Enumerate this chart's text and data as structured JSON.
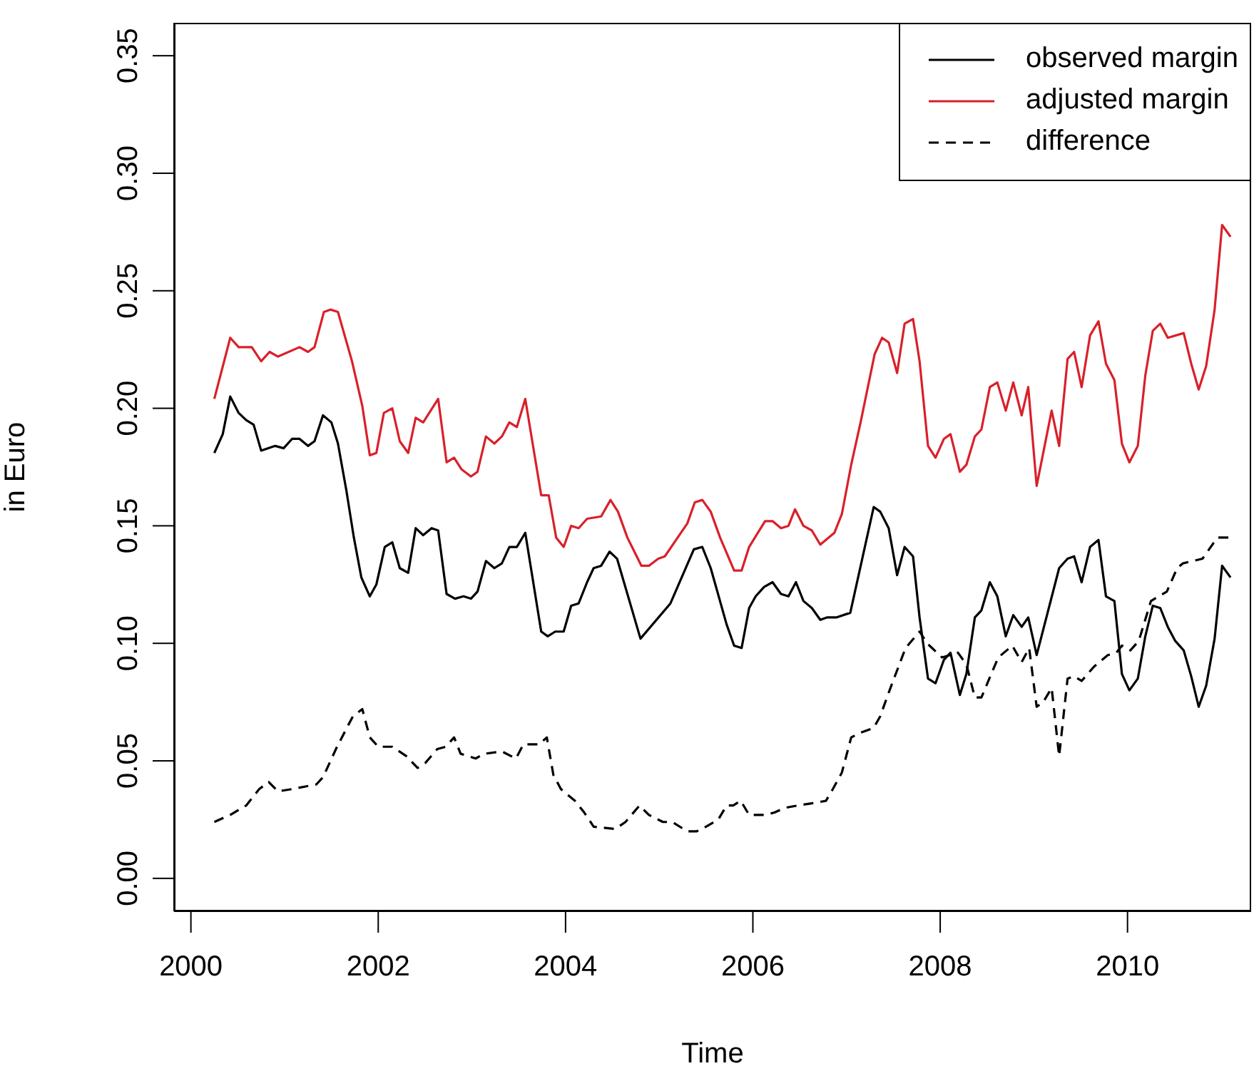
{
  "chart_data": {
    "type": "line",
    "xlabel": "Time",
    "ylabel": "in Euro",
    "xlim": [
      1999.82,
      2011.32
    ],
    "xticks": [
      2000,
      2002,
      2004,
      2006,
      2008,
      2010
    ],
    "ylim": [
      -0.014,
      0.364
    ],
    "yticks": [
      {
        "value": 0,
        "label": "0.00"
      },
      {
        "value": 0.05,
        "label": "0.05"
      },
      {
        "value": 0.1,
        "label": "0.10"
      },
      {
        "value": 0.15,
        "label": "0.15"
      },
      {
        "value": 0.2,
        "label": "0.20"
      },
      {
        "value": 0.25,
        "label": "0.25"
      },
      {
        "value": 0.3,
        "label": "0.30"
      },
      {
        "value": 0.35,
        "label": "0.35"
      }
    ],
    "legend": "top right",
    "marker": "none",
    "series": [
      {
        "name": "observed margin",
        "color": "#000000",
        "line_style": "solid",
        "x": [
          2000.25,
          2000.34,
          2000.42,
          2000.51,
          2000.59,
          2000.67,
          2000.75,
          2000.9,
          2000.99,
          2001.08,
          2001.16,
          2001.25,
          2001.32,
          2001.41,
          2001.5,
          2001.57,
          2001.66,
          2001.74,
          2001.82,
          2001.91,
          2001.98,
          2002.07,
          2002.15,
          2002.23,
          2002.32,
          2002.4,
          2002.48,
          2002.57,
          2002.64,
          2002.73,
          2002.82,
          2002.91,
          2002.99,
          2003.06,
          2003.15,
          2003.24,
          2003.32,
          2003.4,
          2003.48,
          2003.57,
          2003.74,
          2003.81,
          2003.89,
          2003.98,
          2004.06,
          2004.14,
          2004.23,
          2004.3,
          2004.38,
          2004.47,
          2004.55,
          2004.8,
          2005.12,
          2005.37,
          2005.46,
          2005.55,
          2005.72,
          2005.8,
          2005.88,
          2005.96,
          2006.03,
          2006.12,
          2006.21,
          2006.3,
          2006.38,
          2006.46,
          2006.54,
          2006.63,
          2006.72,
          2006.79,
          2006.89,
          2007.04,
          2007.29,
          2007.36,
          2007.45,
          2007.54,
          2007.62,
          2007.71,
          2007.78,
          2007.87,
          2007.95,
          2008.04,
          2008.11,
          2008.21,
          2008.28,
          2008.37,
          2008.44,
          2008.53,
          2008.61,
          2008.7,
          2008.78,
          2008.87,
          2008.94,
          2009.03,
          2009.27,
          2009.36,
          2009.43,
          2009.51,
          2009.6,
          2009.69,
          2009.77,
          2009.86,
          2009.94,
          2010.02,
          2010.11,
          2010.19,
          2010.27,
          2010.35,
          2010.43,
          2010.51,
          2010.6,
          2010.68,
          2010.76,
          2010.84,
          2010.93,
          2011.01,
          2011.1
        ],
        "values": [
          0.181,
          0.189,
          0.205,
          0.198,
          0.195,
          0.193,
          0.182,
          0.184,
          0.183,
          0.187,
          0.187,
          0.184,
          0.186,
          0.197,
          0.194,
          0.185,
          0.165,
          0.145,
          0.128,
          0.12,
          0.125,
          0.141,
          0.143,
          0.132,
          0.13,
          0.149,
          0.146,
          0.149,
          0.148,
          0.121,
          0.119,
          0.12,
          0.119,
          0.122,
          0.135,
          0.132,
          0.134,
          0.141,
          0.141,
          0.147,
          0.105,
          0.103,
          0.105,
          0.105,
          0.116,
          0.117,
          0.126,
          0.132,
          0.133,
          0.139,
          0.136,
          0.102,
          0.117,
          0.14,
          0.141,
          0.132,
          0.108,
          0.099,
          0.098,
          0.115,
          0.12,
          0.124,
          0.126,
          0.121,
          0.12,
          0.126,
          0.118,
          0.115,
          0.11,
          0.111,
          0.111,
          0.113,
          0.158,
          0.156,
          0.149,
          0.129,
          0.141,
          0.137,
          0.111,
          0.085,
          0.083,
          0.093,
          0.096,
          0.078,
          0.087,
          0.111,
          0.114,
          0.126,
          0.12,
          0.103,
          0.112,
          0.107,
          0.111,
          0.095,
          0.132,
          0.136,
          0.137,
          0.126,
          0.141,
          0.144,
          0.12,
          0.118,
          0.087,
          0.08,
          0.085,
          0.103,
          0.116,
          0.115,
          0.107,
          0.101,
          0.097,
          0.086,
          0.073,
          0.082,
          0.102,
          0.133,
          0.128
        ]
      },
      {
        "name": "adjusted margin",
        "color": "#d9202a",
        "line_style": "solid",
        "x": [
          2000.25,
          2000.42,
          2000.51,
          2000.65,
          2000.75,
          2000.84,
          2000.93,
          2001.16,
          2001.25,
          2001.32,
          2001.42,
          2001.49,
          2001.57,
          2001.72,
          2001.83,
          2001.91,
          2001.98,
          2002.06,
          2002.15,
          2002.23,
          2002.32,
          2002.4,
          2002.48,
          2002.64,
          2002.73,
          2002.81,
          2002.89,
          2002.99,
          2003.06,
          2003.15,
          2003.24,
          2003.32,
          2003.4,
          2003.48,
          2003.57,
          2003.74,
          2003.82,
          2003.9,
          2003.98,
          2004.06,
          2004.14,
          2004.23,
          2004.38,
          2004.48,
          2004.56,
          2004.66,
          2004.81,
          2004.89,
          2004.99,
          2005.06,
          2005.3,
          2005.38,
          2005.46,
          2005.55,
          2005.65,
          2005.8,
          2005.88,
          2005.96,
          2006.13,
          2006.21,
          2006.3,
          2006.38,
          2006.45,
          2006.54,
          2006.63,
          2006.72,
          2006.87,
          2006.95,
          2007.05,
          2007.15,
          2007.3,
          2007.38,
          2007.45,
          2007.54,
          2007.62,
          2007.71,
          2007.78,
          2007.87,
          2007.95,
          2008.04,
          2008.11,
          2008.21,
          2008.28,
          2008.37,
          2008.44,
          2008.53,
          2008.61,
          2008.7,
          2008.78,
          2008.87,
          2008.94,
          2009.03,
          2009.19,
          2009.27,
          2009.36,
          2009.43,
          2009.51,
          2009.6,
          2009.69,
          2009.77,
          2009.86,
          2009.94,
          2010.02,
          2010.11,
          2010.19,
          2010.27,
          2010.35,
          2010.43,
          2010.6,
          2010.68,
          2010.76,
          2010.84,
          2010.93,
          2011.01,
          2011.1
        ],
        "values": [
          0.204,
          0.23,
          0.226,
          0.226,
          0.22,
          0.224,
          0.222,
          0.226,
          0.224,
          0.226,
          0.241,
          0.242,
          0.241,
          0.22,
          0.201,
          0.18,
          0.181,
          0.198,
          0.2,
          0.186,
          0.181,
          0.196,
          0.194,
          0.204,
          0.177,
          0.179,
          0.174,
          0.171,
          0.173,
          0.188,
          0.185,
          0.188,
          0.194,
          0.192,
          0.204,
          0.163,
          0.163,
          0.145,
          0.141,
          0.15,
          0.149,
          0.153,
          0.154,
          0.161,
          0.156,
          0.145,
          0.133,
          0.133,
          0.136,
          0.137,
          0.151,
          0.16,
          0.161,
          0.156,
          0.145,
          0.131,
          0.131,
          0.141,
          0.152,
          0.152,
          0.149,
          0.15,
          0.157,
          0.15,
          0.148,
          0.142,
          0.147,
          0.155,
          0.176,
          0.194,
          0.223,
          0.23,
          0.228,
          0.215,
          0.236,
          0.238,
          0.22,
          0.184,
          0.179,
          0.187,
          0.189,
          0.173,
          0.176,
          0.188,
          0.191,
          0.209,
          0.211,
          0.199,
          0.211,
          0.197,
          0.209,
          0.167,
          0.199,
          0.184,
          0.221,
          0.224,
          0.209,
          0.231,
          0.237,
          0.219,
          0.212,
          0.185,
          0.177,
          0.184,
          0.214,
          0.233,
          0.236,
          0.23,
          0.232,
          0.219,
          0.208,
          0.218,
          0.242,
          0.278,
          0.273
        ]
      },
      {
        "name": "difference",
        "color": "#000000",
        "line_style": "dashed",
        "x": [
          2000.25,
          2000.42,
          2000.59,
          2000.73,
          2000.83,
          2000.93,
          2001.08,
          2001.34,
          2001.41,
          2001.56,
          2001.73,
          2001.83,
          2001.91,
          2002.0,
          2002.15,
          2002.3,
          2002.42,
          2002.5,
          2002.63,
          2002.72,
          2002.81,
          2002.88,
          2003.04,
          2003.13,
          2003.32,
          2003.47,
          2003.55,
          2003.72,
          2003.8,
          2003.87,
          2003.95,
          2004.1,
          2004.2,
          2004.3,
          2004.53,
          2004.64,
          2004.79,
          2004.89,
          2005.04,
          2005.14,
          2005.3,
          2005.4,
          2005.5,
          2005.63,
          2005.72,
          2005.79,
          2005.87,
          2005.96,
          2006.13,
          2006.23,
          2006.34,
          2006.48,
          2006.64,
          2006.78,
          2006.84,
          2006.95,
          2007.05,
          2007.15,
          2007.29,
          2007.36,
          2007.45,
          2007.63,
          2007.78,
          2007.86,
          2008.02,
          2008.19,
          2008.28,
          2008.37,
          2008.44,
          2008.62,
          2008.77,
          2008.87,
          2008.95,
          2009.03,
          2009.1,
          2009.19,
          2009.27,
          2009.36,
          2009.43,
          2009.51,
          2009.64,
          2009.79,
          2009.88,
          2009.94,
          2010.03,
          2010.12,
          2010.25,
          2010.42,
          2010.53,
          2010.59,
          2010.8,
          2010.96,
          2011.1
        ],
        "values": [
          0.024,
          0.027,
          0.031,
          0.038,
          0.041,
          0.037,
          0.038,
          0.04,
          0.043,
          0.056,
          0.069,
          0.072,
          0.06,
          0.056,
          0.056,
          0.052,
          0.047,
          0.049,
          0.055,
          0.056,
          0.06,
          0.053,
          0.051,
          0.053,
          0.054,
          0.051,
          0.057,
          0.057,
          0.06,
          0.044,
          0.038,
          0.033,
          0.028,
          0.022,
          0.021,
          0.024,
          0.031,
          0.027,
          0.024,
          0.024,
          0.02,
          0.02,
          0.022,
          0.025,
          0.031,
          0.031,
          0.033,
          0.027,
          0.027,
          0.028,
          0.03,
          0.031,
          0.032,
          0.033,
          0.037,
          0.045,
          0.06,
          0.062,
          0.064,
          0.069,
          0.079,
          0.098,
          0.105,
          0.1,
          0.094,
          0.096,
          0.091,
          0.077,
          0.077,
          0.094,
          0.099,
          0.092,
          0.098,
          0.073,
          0.075,
          0.081,
          0.052,
          0.085,
          0.086,
          0.084,
          0.09,
          0.095,
          0.096,
          0.099,
          0.097,
          0.101,
          0.118,
          0.122,
          0.132,
          0.134,
          0.136,
          0.145,
          0.145
        ]
      }
    ]
  }
}
